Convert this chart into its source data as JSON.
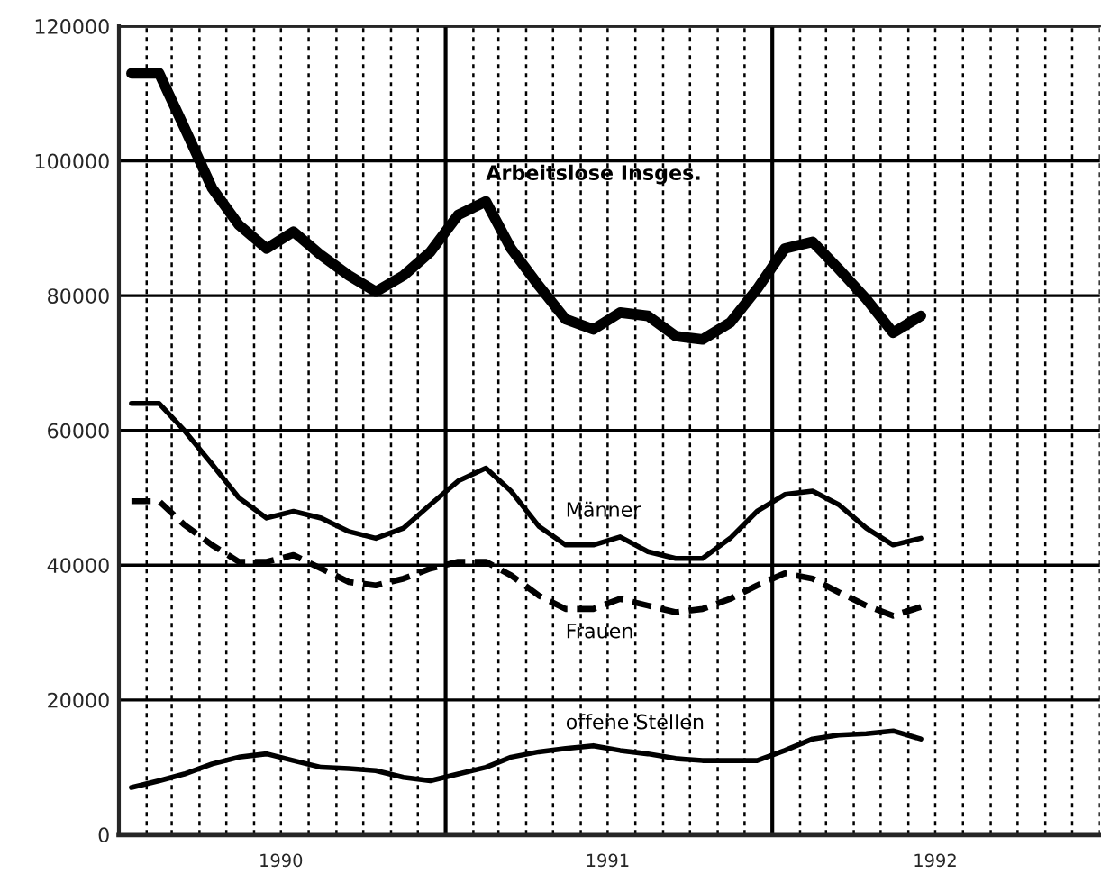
{
  "chart_data": {
    "type": "line",
    "x": [
      "1990-01-15",
      "1990-02-15",
      "1990-03-15",
      "1990-04-15",
      "1990-05-15",
      "1990-06-15",
      "1990-07-15",
      "1990-08-15",
      "1990-09-15",
      "1990-10-15",
      "1990-11-15",
      "1990-12-15",
      "1991-01-15",
      "1991-02-15",
      "1991-03-15",
      "1991-04-15",
      "1991-05-15",
      "1991-06-15",
      "1991-07-15",
      "1991-08-15",
      "1991-09-15",
      "1991-10-15",
      "1991-11-15",
      "1991-12-15",
      "1992-01-15",
      "1992-02-15",
      "1992-03-15",
      "1992-04-15",
      "1992-05-15",
      "1992-06-15"
    ],
    "series": [
      {
        "name": "Arbeitslose Insges.",
        "color": "#000000",
        "line_style": "solid",
        "values": [
          113000,
          113000,
          105000,
          96000,
          90500,
          87000,
          89500,
          86000,
          83000,
          80600,
          83000,
          86500,
          92000,
          94000,
          87000,
          81500,
          76500,
          75000,
          77500,
          77000,
          74000,
          73500,
          76000,
          81000,
          87000,
          88000,
          84000,
          79500,
          74500,
          77000
        ]
      },
      {
        "name": "Männer",
        "color": "#000000",
        "line_style": "solid",
        "values": [
          64000,
          64000,
          60000,
          55000,
          50000,
          47000,
          48000,
          47000,
          45000,
          44000,
          45500,
          49000,
          52500,
          54400,
          51000,
          45800,
          43000,
          43000,
          44200,
          42000,
          41000,
          41000,
          44000,
          48000,
          50500,
          51000,
          49000,
          45500,
          43000,
          44000
        ]
      },
      {
        "name": "Frauen",
        "color": "#000000",
        "line_style": "dashed",
        "values": [
          49500,
          49500,
          46000,
          43000,
          40500,
          40500,
          41500,
          39500,
          37500,
          37000,
          38000,
          39500,
          40500,
          40500,
          38500,
          35500,
          33500,
          33500,
          35000,
          34000,
          33000,
          33500,
          35000,
          37000,
          38800,
          38000,
          36000,
          34000,
          32500,
          33800
        ]
      },
      {
        "name": "offene Stellen",
        "color": "#000000",
        "line_style": "solid",
        "values": [
          7000,
          8000,
          9000,
          10500,
          11500,
          12000,
          11000,
          10000,
          9800,
          9500,
          8500,
          8000,
          9000,
          10000,
          11500,
          12300,
          12800,
          13200,
          12500,
          12000,
          11300,
          11000,
          11000,
          11000,
          12500,
          14200,
          14800,
          15000,
          15400,
          14200
        ]
      }
    ],
    "xlim": [
      "1990-01-01",
      "1993-01-01"
    ],
    "xticks": [
      {
        "value": "1990-01-01",
        "label": null
      },
      {
        "value": "1990-02-01",
        "label": null
      },
      {
        "value": "1990-03-01",
        "label": null
      },
      {
        "value": "1990-04-01",
        "label": null
      },
      {
        "value": "1990-05-01",
        "label": null
      },
      {
        "value": "1990-06-01",
        "label": null
      },
      {
        "value": "1990-07-01",
        "label": "1990"
      },
      {
        "value": "1990-08-01",
        "label": null
      },
      {
        "value": "1990-09-01",
        "label": null
      },
      {
        "value": "1990-10-01",
        "label": null
      },
      {
        "value": "1990-11-01",
        "label": null
      },
      {
        "value": "1990-12-01",
        "label": null
      },
      {
        "value": "1991-02-01",
        "label": null
      },
      {
        "value": "1991-03-01",
        "label": null
      },
      {
        "value": "1991-04-01",
        "label": null
      },
      {
        "value": "1991-05-01",
        "label": null
      },
      {
        "value": "1991-06-01",
        "label": null
      },
      {
        "value": "1991-07-01",
        "label": "1991"
      },
      {
        "value": "1991-08-01",
        "label": null
      },
      {
        "value": "1991-09-01",
        "label": null
      },
      {
        "value": "1991-10-01",
        "label": null
      },
      {
        "value": "1991-11-01",
        "label": null
      },
      {
        "value": "1991-12-01",
        "label": null
      },
      {
        "value": "1992-02-01",
        "label": null
      },
      {
        "value": "1992-03-01",
        "label": null
      },
      {
        "value": "1992-04-01",
        "label": null
      },
      {
        "value": "1992-05-01",
        "label": null
      },
      {
        "value": "1992-06-01",
        "label": null
      },
      {
        "value": "1992-07-01",
        "label": "1992"
      },
      {
        "value": "1992-08-01",
        "label": null
      },
      {
        "value": "1992-09-01",
        "label": null
      },
      {
        "value": "1992-10-01",
        "label": null
      },
      {
        "value": "1992-11-01",
        "label": null
      },
      {
        "value": "1992-12-01",
        "label": null
      },
      {
        "value": "1993-01-01",
        "label": null
      }
    ],
    "ylim": [
      0,
      120000
    ],
    "yticks": [
      0,
      20000,
      40000,
      60000,
      80000,
      100000,
      120000
    ],
    "ref_lines": [
      {
        "axis": "x",
        "value": "1991-01-01",
        "label": null
      },
      {
        "axis": "x",
        "value": "1992-01-01",
        "label": null
      }
    ],
    "grid": true,
    "marker": "none",
    "legend": false
  }
}
